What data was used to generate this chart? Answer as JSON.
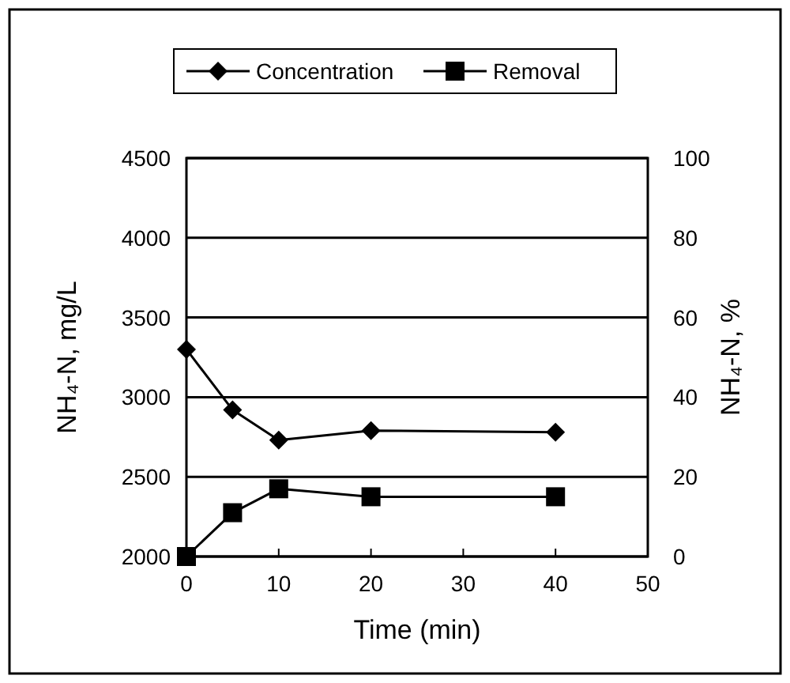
{
  "chart_data": {
    "type": "line",
    "xlabel": "Time (min)",
    "ylabel": "NH₄-N, mg/L",
    "y2label": "NH₄-N, %",
    "xlim": [
      0,
      50
    ],
    "xticks": [
      0,
      10,
      20,
      30,
      40,
      50
    ],
    "ylim": [
      2000,
      4500
    ],
    "yticks": [
      2000,
      2500,
      3000,
      3500,
      4000,
      4500
    ],
    "y2lim": [
      0,
      100
    ],
    "y2ticks": [
      0,
      20,
      40,
      60,
      80,
      100
    ],
    "grid": "y",
    "legend": "top",
    "x": [
      0,
      5,
      10,
      20,
      40
    ],
    "series": [
      {
        "name": "Concentration",
        "color": "#000000",
        "marker": "diamond",
        "values": [
          3300,
          2920,
          2730,
          2790,
          2780
        ]
      },
      {
        "name": "Removal",
        "color": "#000000",
        "marker": "square",
        "axis": "y2",
        "values": [
          0,
          11,
          17,
          15,
          15
        ]
      }
    ]
  }
}
